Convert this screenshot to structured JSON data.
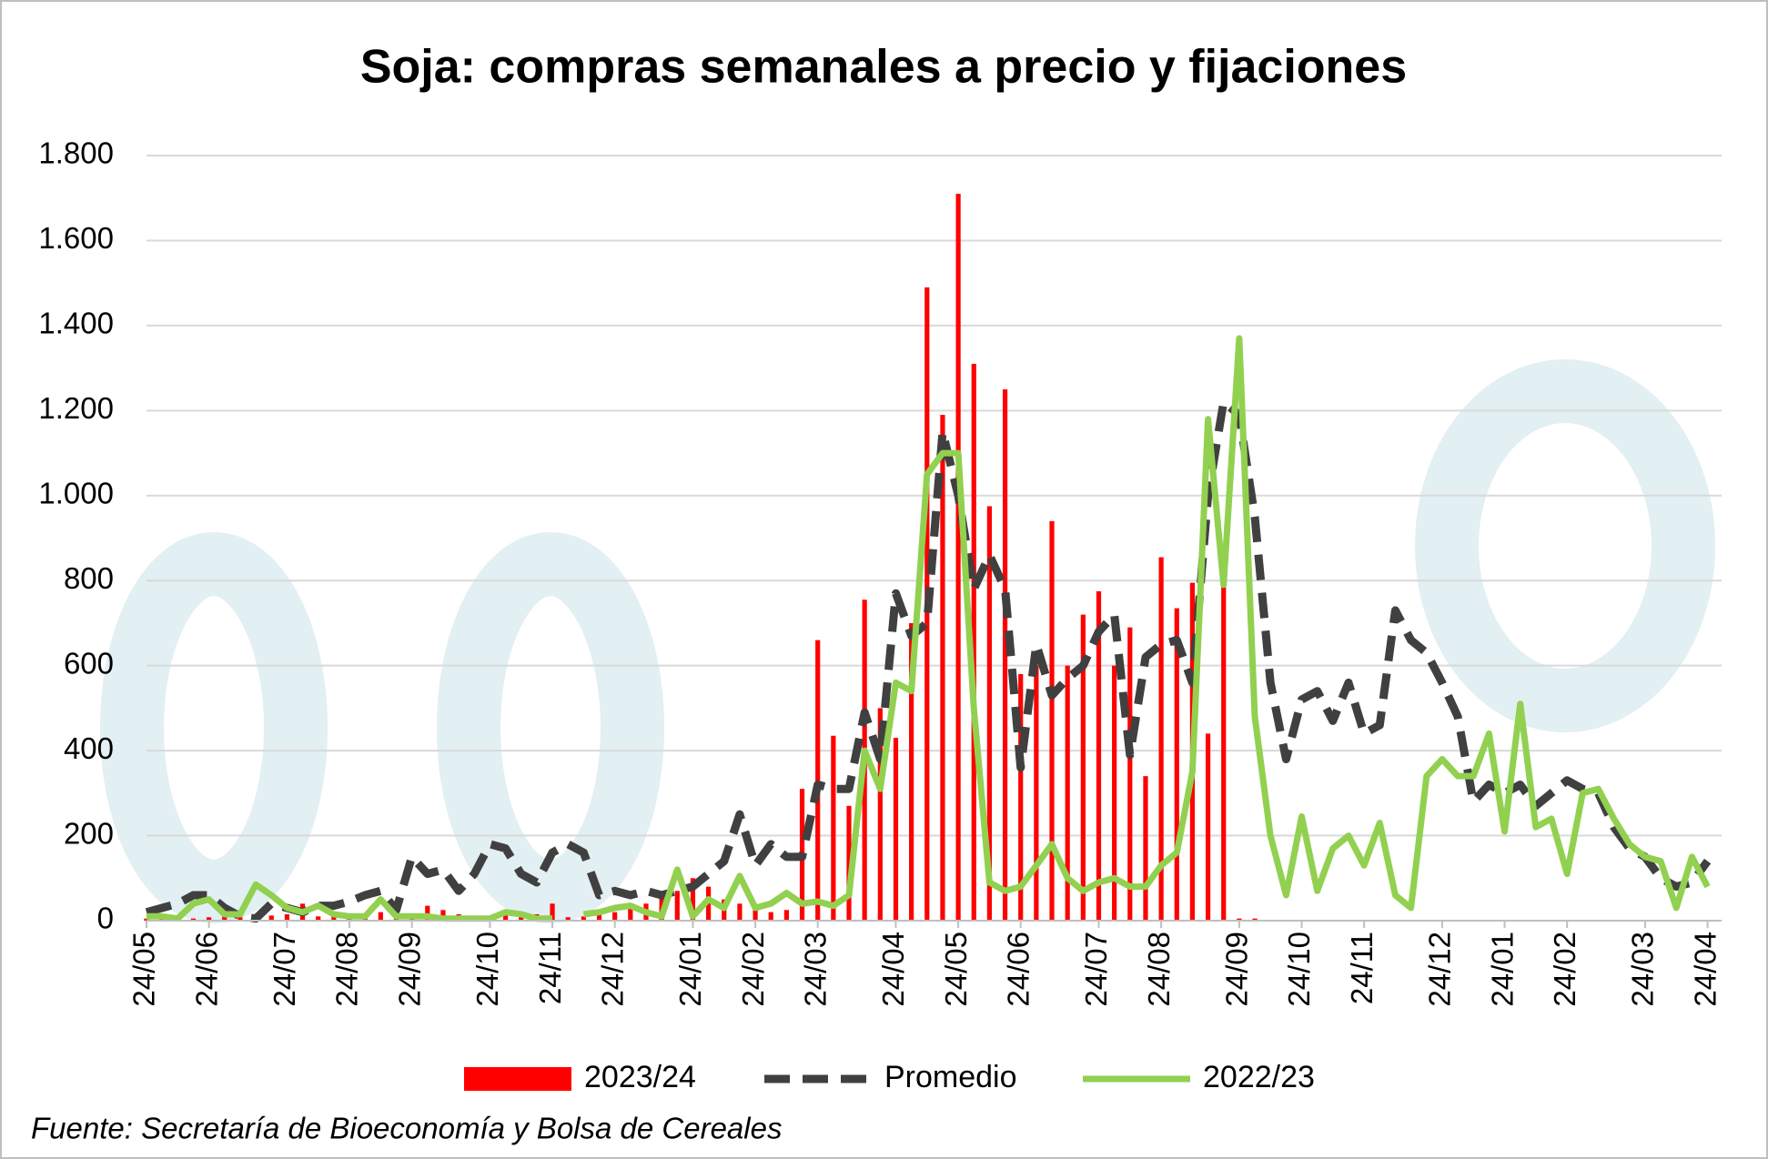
{
  "chart_data": {
    "type": "bar_line",
    "title": "Soja: compras semanales a precio y fijaciones",
    "source": "Fuente: Secretaría de Bioeconomía y Bolsa de Cereales",
    "categories": [
      "24/05",
      null,
      null,
      null,
      "24/06",
      null,
      null,
      null,
      null,
      "24/07",
      null,
      null,
      null,
      "24/08",
      null,
      null,
      null,
      "24/09",
      null,
      null,
      null,
      null,
      "24/10",
      null,
      null,
      null,
      "24/11",
      null,
      null,
      null,
      "24/12",
      null,
      null,
      null,
      null,
      "24/01",
      null,
      null,
      null,
      "24/02",
      null,
      null,
      null,
      "24/03",
      null,
      null,
      null,
      null,
      "24/04",
      null,
      null,
      null,
      "24/05",
      null,
      null,
      null,
      "24/06",
      null,
      null,
      null,
      null,
      "24/07",
      null,
      null,
      null,
      "24/08",
      null,
      null,
      null,
      null,
      "24/09",
      null,
      null,
      null,
      "24/10",
      null,
      null,
      null,
      "24/11",
      null,
      null,
      null,
      null,
      "24/12",
      null,
      null,
      null,
      "24/01",
      null,
      null,
      null,
      "24/02",
      null,
      null,
      null,
      null,
      "24/03",
      null,
      null,
      null,
      "24/04"
    ],
    "ylim": [
      0,
      1800
    ],
    "yticks": [
      0,
      200,
      400,
      600,
      800,
      {
        "value": 1000,
        "label": "1.000"
      },
      {
        "value": 1200,
        "label": "1.200"
      },
      {
        "value": 1400,
        "label": "1.400"
      },
      {
        "value": 1600,
        "label": "1.600"
      },
      {
        "value": 1800,
        "label": "1.800"
      }
    ],
    "grid": true,
    "legend": "bottom",
    "series": [
      {
        "name": "2023/24",
        "kind": "bar",
        "color": "#ff0000",
        "values": [
          5,
          5,
          5,
          5,
          8,
          10,
          8,
          10,
          12,
          15,
          40,
          10,
          12,
          15,
          10,
          20,
          15,
          15,
          35,
          25,
          15,
          10,
          10,
          20,
          20,
          15,
          40,
          8,
          10,
          15,
          20,
          30,
          40,
          60,
          70,
          100,
          80,
          50,
          40,
          30,
          20,
          25,
          310,
          660,
          435,
          270,
          755,
          500,
          430,
          700,
          1490,
          1190,
          1710,
          1310,
          975,
          1250,
          580,
          600,
          940,
          600,
          720,
          775,
          600,
          690,
          340,
          855,
          735,
          795,
          440,
          800,
          5,
          5,
          null,
          null,
          null,
          null,
          null,
          null,
          null,
          null,
          null,
          null,
          null,
          null,
          null,
          null,
          null,
          null,
          null,
          null,
          null,
          null,
          null,
          null,
          null,
          null,
          null,
          null,
          null,
          null,
          null
        ]
      },
      {
        "name": "Promedio",
        "kind": "dashed",
        "color": "#404040",
        "values": [
          20,
          30,
          40,
          60,
          60,
          30,
          10,
          5,
          40,
          30,
          20,
          35,
          35,
          45,
          60,
          70,
          25,
          150,
          110,
          120,
          70,
          110,
          180,
          170,
          110,
          90,
          160,
          180,
          160,
          60,
          70,
          60,
          70,
          60,
          70,
          80,
          110,
          140,
          250,
          130,
          180,
          150,
          150,
          320,
          310,
          310,
          490,
          380,
          770,
          670,
          700,
          1150,
          1000,
          780,
          860,
          780,
          360,
          650,
          530,
          570,
          600,
          680,
          720,
          390,
          620,
          650,
          660,
          560,
          1000,
          1220,
          1190,
          950,
          560,
          380,
          520,
          540,
          470,
          560,
          440,
          460,
          730,
          660,
          630,
          560,
          480,
          280,
          320,
          300,
          320,
          270,
          300,
          330,
          310,
          300,
          220,
          170,
          150,
          100,
          80,
          90,
          140
        ]
      },
      {
        "name": "2022/23",
        "kind": "line",
        "color": "#92d050",
        "values": [
          10,
          10,
          5,
          40,
          50,
          15,
          15,
          85,
          60,
          30,
          20,
          35,
          15,
          10,
          10,
          50,
          10,
          10,
          10,
          5,
          5,
          5,
          5,
          20,
          15,
          5,
          5,
          null,
          15,
          20,
          30,
          35,
          20,
          10,
          120,
          10,
          50,
          30,
          105,
          30,
          40,
          65,
          40,
          45,
          35,
          60,
          400,
          310,
          560,
          540,
          1050,
          1100,
          1100,
          500,
          90,
          70,
          80,
          130,
          180,
          100,
          70,
          90,
          100,
          80,
          80,
          130,
          160,
          350,
          1180,
          790,
          1370,
          480,
          200,
          60,
          245,
          70,
          170,
          200,
          130,
          230,
          60,
          30,
          340,
          380,
          340,
          340,
          440,
          210,
          510,
          220,
          240,
          110,
          300,
          310,
          240,
          180,
          150,
          140,
          30,
          150,
          80
        ]
      }
    ]
  }
}
